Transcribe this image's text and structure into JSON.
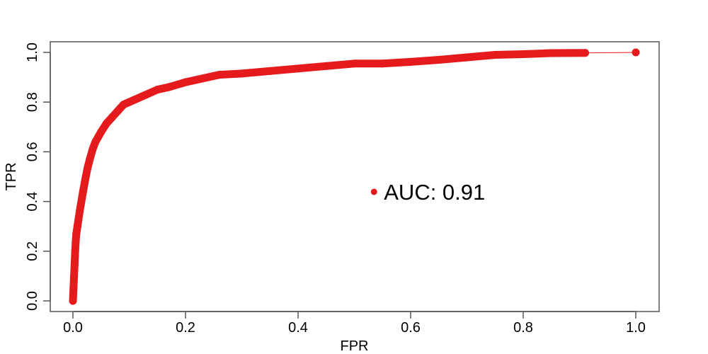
{
  "chart_data": {
    "type": "line",
    "xlabel": "FPR",
    "ylabel": "TPR",
    "xlim": [
      0.0,
      1.0
    ],
    "ylim": [
      0.0,
      1.0
    ],
    "x_ticks": [
      "0.0",
      "0.2",
      "0.4",
      "0.6",
      "0.8",
      "1.0"
    ],
    "y_ticks": [
      "0.0",
      "0.2",
      "0.4",
      "0.6",
      "0.8",
      "1.0"
    ],
    "grid": false,
    "legend": "none",
    "color": "#e41a1c",
    "series": [
      {
        "x": [
          0.0,
          0.001,
          0.002,
          0.003,
          0.004,
          0.005,
          0.006,
          0.008,
          0.01,
          0.012,
          0.015,
          0.018,
          0.022,
          0.026,
          0.03,
          0.035,
          0.04,
          0.045,
          0.05,
          0.06,
          0.07,
          0.08,
          0.09,
          0.1,
          0.11,
          0.13,
          0.15,
          0.17,
          0.2,
          0.23,
          0.26,
          0.3,
          0.35,
          0.4,
          0.45,
          0.5,
          0.55,
          0.6,
          0.65,
          0.7,
          0.75,
          0.8,
          0.85,
          0.91,
          1.0
        ],
        "y": [
          0.0,
          0.05,
          0.1,
          0.15,
          0.2,
          0.24,
          0.27,
          0.3,
          0.33,
          0.36,
          0.4,
          0.44,
          0.49,
          0.535,
          0.57,
          0.61,
          0.64,
          0.66,
          0.68,
          0.715,
          0.74,
          0.765,
          0.79,
          0.8,
          0.81,
          0.83,
          0.85,
          0.86,
          0.88,
          0.895,
          0.91,
          0.915,
          0.925,
          0.935,
          0.945,
          0.955,
          0.955,
          0.962,
          0.97,
          0.98,
          0.99,
          0.993,
          0.997,
          0.998,
          1.0
        ]
      }
    ],
    "annotation": {
      "text": "AUC: 0.91",
      "marker_x": 0.55,
      "marker_y": 0.55
    }
  }
}
